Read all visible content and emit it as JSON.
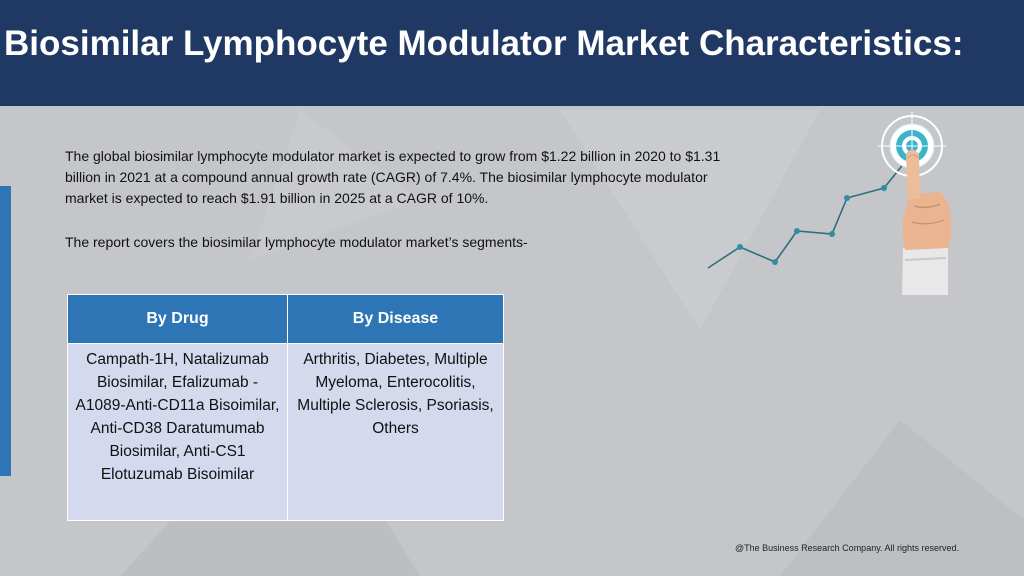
{
  "title": "Biosimilar Lymphocyte Modulator Market Characteristics:",
  "intro": "The global biosimilar lymphocyte modulator market is expected to grow from $1.22 billion in 2020 to $1.31 billion in 2021 at a compound annual growth rate (CAGR) of 7.4%. The biosimilar lymphocyte modulator market is expected to reach $1.91 billion in 2025 at a CAGR of 10%.",
  "segments_note": "The report covers the biosimilar lymphocyte modulator market’s segments-",
  "table": {
    "headers": [
      "By Drug",
      "By Disease"
    ],
    "cells": [
      "Campath-1H, Natalizumab Biosimilar, Efalizumab - A1089-Anti-CD11a Bisoimilar, Anti-CD38 Daratumumab Biosimilar, Anti-CS1 Elotuzumab Bisoimilar",
      "Arthritis, Diabetes, Multiple Myeloma, Enterocolitis, Multiple Sclerosis, Psoriasis, Others"
    ]
  },
  "footer": "@The Business Research Company. All rights reserved.",
  "colors": {
    "header_bg": "#203864",
    "accent": "#2e75b6",
    "table_cell_bg": "#d4d9ee",
    "page_bg": "#c4c6c9",
    "target_teal": "#3bb3c9"
  },
  "icons": [
    "growth-chart-hand-target-illustration"
  ]
}
